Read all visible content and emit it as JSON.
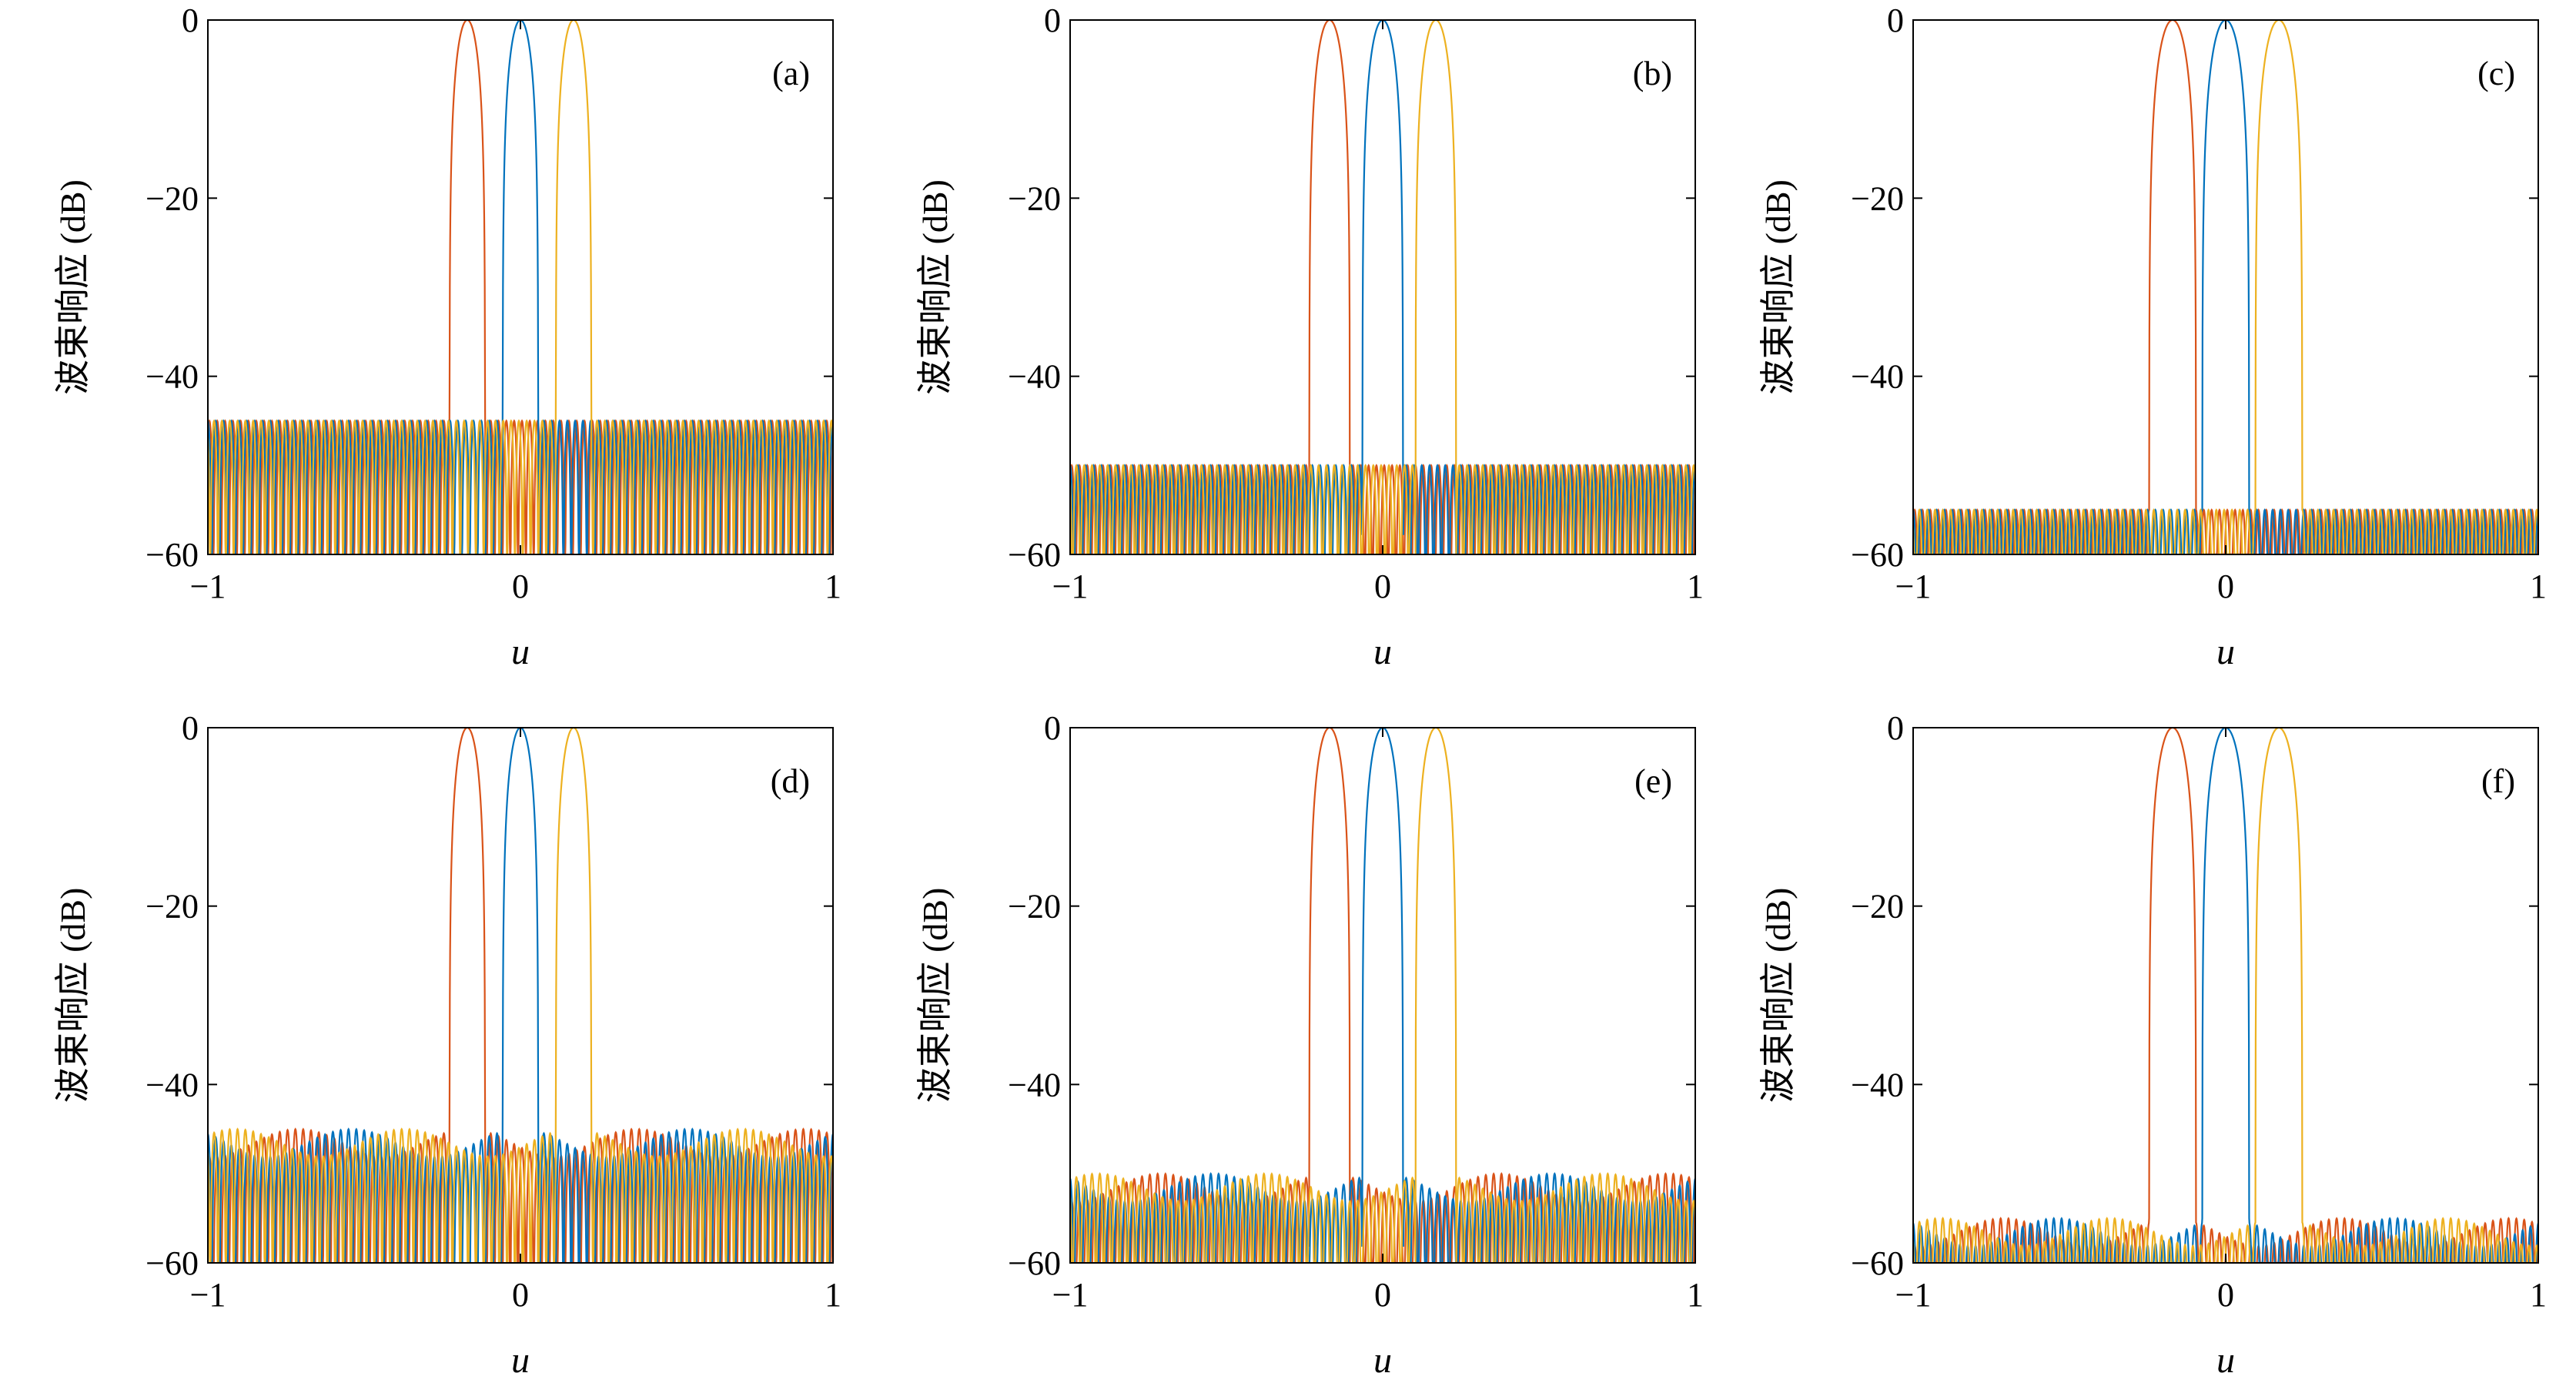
{
  "figure": {
    "panel_count": 6,
    "colors": {
      "red": "#D95319",
      "blue": "#0072BD",
      "yellow": "#EDB120",
      "axis": "#000000"
    }
  },
  "chart_data": [
    {
      "type": "line",
      "panel": "(a)",
      "xlabel": "u",
      "ylabel": "波束响应 (dB)",
      "xlim": [
        -1,
        1
      ],
      "ylim": [
        -60,
        0
      ],
      "xticks": [
        -1,
        0,
        1
      ],
      "yticks": [
        0,
        -20,
        -40,
        -60
      ],
      "xtick_labels": [
        "−1",
        "0",
        "1"
      ],
      "ytick_labels": [
        "0",
        "−20",
        "−40",
        "−60"
      ],
      "sidelobe_level_db": -45,
      "series": [
        {
          "color": "#D95319",
          "peak_u": -0.17,
          "peak_db": 0,
          "mainlobe_halfwidth": 0.057
        },
        {
          "color": "#0072BD",
          "peak_u": 0,
          "peak_db": 0,
          "mainlobe_halfwidth": 0.057
        },
        {
          "color": "#EDB120",
          "peak_u": 0.17,
          "peak_db": 0,
          "mainlobe_halfwidth": 0.057
        }
      ],
      "ripple_style": "equiripple",
      "grid": false
    },
    {
      "type": "line",
      "panel": "(b)",
      "xlabel": "u",
      "ylabel": "波束响应 (dB)",
      "xlim": [
        -1,
        1
      ],
      "ylim": [
        -60,
        0
      ],
      "xticks": [
        -1,
        0,
        1
      ],
      "yticks": [
        0,
        -20,
        -40,
        -60
      ],
      "xtick_labels": [
        "−1",
        "0",
        "1"
      ],
      "ytick_labels": [
        "0",
        "−20",
        "−40",
        "−60"
      ],
      "sidelobe_level_db": -50,
      "series": [
        {
          "color": "#D95319",
          "peak_u": -0.17,
          "peak_db": 0,
          "mainlobe_halfwidth": 0.065
        },
        {
          "color": "#0072BD",
          "peak_u": 0,
          "peak_db": 0,
          "mainlobe_halfwidth": 0.065
        },
        {
          "color": "#EDB120",
          "peak_u": 0.17,
          "peak_db": 0,
          "mainlobe_halfwidth": 0.065
        }
      ],
      "ripple_style": "equiripple",
      "grid": false
    },
    {
      "type": "line",
      "panel": "(c)",
      "xlabel": "u",
      "ylabel": "波束响应 (dB)",
      "xlim": [
        -1,
        1
      ],
      "ylim": [
        -60,
        0
      ],
      "xticks": [
        -1,
        0,
        1
      ],
      "yticks": [
        0,
        -20,
        -40,
        -60
      ],
      "xtick_labels": [
        "−1",
        "0",
        "1"
      ],
      "ytick_labels": [
        "0",
        "−20",
        "−40",
        "−60"
      ],
      "sidelobe_level_db": -55,
      "series": [
        {
          "color": "#D95319",
          "peak_u": -0.17,
          "peak_db": 0,
          "mainlobe_halfwidth": 0.075
        },
        {
          "color": "#0072BD",
          "peak_u": 0,
          "peak_db": 0,
          "mainlobe_halfwidth": 0.075
        },
        {
          "color": "#EDB120",
          "peak_u": 0.17,
          "peak_db": 0,
          "mainlobe_halfwidth": 0.075
        }
      ],
      "ripple_style": "equiripple",
      "grid": false
    },
    {
      "type": "line",
      "panel": "(d)",
      "xlabel": "u",
      "ylabel": "波束响应 (dB)",
      "xlim": [
        -1,
        1
      ],
      "ylim": [
        -60,
        0
      ],
      "xticks": [
        -1,
        0,
        1
      ],
      "yticks": [
        0,
        -20,
        -40,
        -60
      ],
      "xtick_labels": [
        "−1",
        "0",
        "1"
      ],
      "ytick_labels": [
        "0",
        "−20",
        "−40",
        "−60"
      ],
      "sidelobe_level_db": -45,
      "series": [
        {
          "color": "#D95319",
          "peak_u": -0.17,
          "peak_db": 0,
          "mainlobe_halfwidth": 0.057
        },
        {
          "color": "#0072BD",
          "peak_u": 0,
          "peak_db": 0,
          "mainlobe_halfwidth": 0.057
        },
        {
          "color": "#EDB120",
          "peak_u": 0.17,
          "peak_db": 0,
          "mainlobe_halfwidth": 0.057
        }
      ],
      "ripple_style": "uneven",
      "grid": false
    },
    {
      "type": "line",
      "panel": "(e)",
      "xlabel": "u",
      "ylabel": "波束响应 (dB)",
      "xlim": [
        -1,
        1
      ],
      "ylim": [
        -60,
        0
      ],
      "xticks": [
        -1,
        0,
        1
      ],
      "yticks": [
        0,
        -20,
        -40,
        -60
      ],
      "xtick_labels": [
        "−1",
        "0",
        "1"
      ],
      "ytick_labels": [
        "0",
        "−20",
        "−40",
        "−60"
      ],
      "sidelobe_level_db": -50,
      "series": [
        {
          "color": "#D95319",
          "peak_u": -0.17,
          "peak_db": 0,
          "mainlobe_halfwidth": 0.065
        },
        {
          "color": "#0072BD",
          "peak_u": 0,
          "peak_db": 0,
          "mainlobe_halfwidth": 0.065
        },
        {
          "color": "#EDB120",
          "peak_u": 0.17,
          "peak_db": 0,
          "mainlobe_halfwidth": 0.065
        }
      ],
      "ripple_style": "uneven",
      "grid": false
    },
    {
      "type": "line",
      "panel": "(f)",
      "xlabel": "u",
      "ylabel": "波束响应 (dB)",
      "xlim": [
        -1,
        1
      ],
      "ylim": [
        -60,
        0
      ],
      "xticks": [
        -1,
        0,
        1
      ],
      "yticks": [
        0,
        -20,
        -40,
        -60
      ],
      "xtick_labels": [
        "−1",
        "0",
        "1"
      ],
      "ytick_labels": [
        "0",
        "−20",
        "−40",
        "−60"
      ],
      "sidelobe_level_db": -55,
      "series": [
        {
          "color": "#D95319",
          "peak_u": -0.17,
          "peak_db": 0,
          "mainlobe_halfwidth": 0.075
        },
        {
          "color": "#0072BD",
          "peak_u": 0,
          "peak_db": 0,
          "mainlobe_halfwidth": 0.075
        },
        {
          "color": "#EDB120",
          "peak_u": 0.17,
          "peak_db": 0,
          "mainlobe_halfwidth": 0.075
        }
      ],
      "ripple_style": "uneven",
      "grid": false
    }
  ]
}
